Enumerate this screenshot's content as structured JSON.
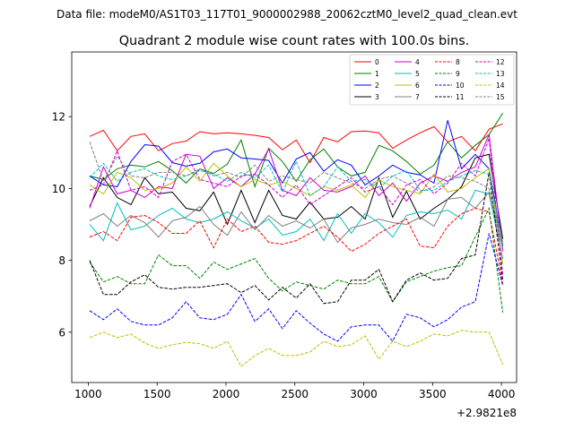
{
  "suptitle": "Data file: modeM0/AS1T03_117T01_9000002988_20062cztM0_level2_quad_clean.evt",
  "chart_data": {
    "type": "line",
    "title": "Quadrant 2 module wise count rates with 100.0s bins.",
    "xlabel": "",
    "ylabel": "",
    "x_offset_label": "+2.9821e8",
    "xlim": [
      880,
      4110
    ],
    "ylim": [
      4.6,
      13.8
    ],
    "xticks": [
      1000,
      1500,
      2000,
      2500,
      3000,
      3500,
      4000
    ],
    "yticks": [
      6,
      8,
      10,
      12
    ],
    "grid": false,
    "legend_position": "top-right",
    "x": [
      1010,
      1110,
      1210,
      1310,
      1410,
      1510,
      1610,
      1710,
      1810,
      1910,
      2010,
      2110,
      2210,
      2310,
      2410,
      2510,
      2610,
      2710,
      2810,
      2910,
      3010,
      3110,
      3210,
      3310,
      3410,
      3510,
      3610,
      3710,
      3810,
      3910,
      4010
    ],
    "series": [
      {
        "name": "0",
        "color": "#ff0000",
        "dash": "solid",
        "values": [
          11.45,
          11.62,
          11.05,
          11.45,
          11.52,
          11.05,
          11.25,
          11.32,
          11.58,
          11.52,
          11.55,
          11.52,
          11.48,
          11.42,
          11.08,
          11.35,
          10.72,
          11.42,
          11.3,
          11.58,
          11.6,
          11.55,
          11.12,
          11.35,
          11.55,
          11.72,
          11.3,
          11.45,
          11.05,
          11.65,
          11.8
        ]
      },
      {
        "name": "1",
        "color": "#008000",
        "dash": "solid",
        "values": [
          10.35,
          10.25,
          10.55,
          10.65,
          10.6,
          10.75,
          10.5,
          10.15,
          10.55,
          10.42,
          10.68,
          11.35,
          10.05,
          11.12,
          10.75,
          10.2,
          10.8,
          11.1,
          10.6,
          10.35,
          10.45,
          11.2,
          11.05,
          10.75,
          10.4,
          10.65,
          11.3,
          10.85,
          11.2,
          11.5,
          12.1
        ]
      },
      {
        "name": "2",
        "color": "#0000ff",
        "dash": "solid",
        "values": [
          10.35,
          10.1,
          10.05,
          10.75,
          11.22,
          11.18,
          10.72,
          10.62,
          10.7,
          11.02,
          11.1,
          10.85,
          10.82,
          10.78,
          10.15,
          10.82,
          11.0,
          10.48,
          10.8,
          10.65,
          10.1,
          10.35,
          10.65,
          10.45,
          10.38,
          10.15,
          11.9,
          10.55,
          10.95,
          10.55,
          8.4
        ]
      },
      {
        "name": "3",
        "color": "#000000",
        "dash": "solid",
        "values": [
          9.5,
          10.3,
          9.75,
          9.55,
          10.3,
          9.85,
          9.9,
          9.45,
          9.38,
          9.9,
          9.0,
          9.95,
          9.05,
          9.95,
          9.25,
          9.15,
          9.62,
          9.15,
          9.2,
          9.5,
          9.15,
          10.3,
          9.2,
          9.92,
          9.15,
          9.45,
          9.7,
          10.05,
          10.85,
          10.95,
          8.6
        ]
      },
      {
        "name": "4",
        "color": "#cc00cc",
        "dash": "solid",
        "values": [
          9.45,
          10.6,
          9.85,
          9.95,
          9.75,
          10.05,
          10.0,
          10.95,
          10.9,
          10.0,
          10.3,
          10.05,
          10.4,
          11.1,
          9.95,
          9.8,
          10.3,
          9.95,
          9.9,
          10.05,
          10.35,
          9.8,
          10.15,
          9.65,
          10.15,
          10.35,
          10.2,
          10.45,
          10.6,
          11.5,
          8.25
        ]
      },
      {
        "name": "5",
        "color": "#00bfbf",
        "dash": "solid",
        "values": [
          9.0,
          8.55,
          9.6,
          8.85,
          8.95,
          9.25,
          9.45,
          9.15,
          9.05,
          9.15,
          9.35,
          9.1,
          8.9,
          9.15,
          8.7,
          8.8,
          9.15,
          8.55,
          9.3,
          8.75,
          9.3,
          9.05,
          8.65,
          9.25,
          9.35,
          9.3,
          9.4,
          9.15,
          9.95,
          9.85,
          8.05
        ]
      },
      {
        "name": "6",
        "color": "#bfbf00",
        "dash": "solid",
        "values": [
          10.1,
          9.85,
          10.45,
          10.3,
          9.95,
          10.0,
          10.15,
          10.6,
          10.2,
          10.7,
          10.35,
          10.05,
          10.25,
          10.1,
          10.2,
          10.0,
          9.8,
          10.05,
          9.95,
          10.1,
          9.75,
          10.25,
          10.05,
          9.95,
          9.85,
          10.4,
          9.9,
          10.0,
          10.3,
          10.55,
          7.9
        ]
      },
      {
        "name": "7",
        "color": "#808080",
        "dash": "solid",
        "values": [
          9.1,
          9.3,
          8.95,
          9.25,
          9.05,
          8.65,
          9.1,
          9.2,
          9.5,
          9.0,
          8.7,
          9.35,
          8.85,
          9.25,
          8.95,
          9.1,
          8.9,
          9.15,
          8.5,
          8.9,
          9.0,
          9.15,
          9.05,
          9.0,
          9.2,
          8.95,
          9.7,
          9.75,
          9.45,
          9.9,
          8.35
        ]
      },
      {
        "name": "8",
        "color": "#ff0000",
        "dash": "dashed",
        "values": [
          8.65,
          8.8,
          8.55,
          9.2,
          9.25,
          9.05,
          8.75,
          8.75,
          9.1,
          8.35,
          9.15,
          8.8,
          8.95,
          8.5,
          8.45,
          8.55,
          8.75,
          8.95,
          8.65,
          8.25,
          8.45,
          8.75,
          8.95,
          9.15,
          8.4,
          8.35,
          8.95,
          9.3,
          9.45,
          9.35,
          7.35
        ]
      },
      {
        "name": "9",
        "color": "#008000",
        "dash": "dashed",
        "values": [
          7.95,
          7.4,
          7.55,
          7.35,
          7.35,
          8.15,
          7.85,
          7.85,
          7.5,
          7.95,
          7.75,
          7.9,
          8.05,
          7.5,
          7.15,
          7.4,
          7.3,
          7.2,
          7.45,
          7.35,
          7.35,
          7.55,
          6.85,
          7.4,
          7.55,
          7.7,
          7.8,
          7.85,
          8.65,
          9.45,
          6.55
        ]
      },
      {
        "name": "10",
        "color": "#0000ff",
        "dash": "dashed",
        "values": [
          6.6,
          6.35,
          6.65,
          6.3,
          6.2,
          6.2,
          6.4,
          6.85,
          6.4,
          6.35,
          6.5,
          7.05,
          6.3,
          6.65,
          6.1,
          6.6,
          6.25,
          5.95,
          5.75,
          6.15,
          6.2,
          6.2,
          5.75,
          6.5,
          6.4,
          6.15,
          6.35,
          6.7,
          6.85,
          8.75,
          7.3
        ]
      },
      {
        "name": "11",
        "color": "#000000",
        "dash": "dashed",
        "values": [
          8.0,
          7.05,
          7.05,
          7.4,
          7.6,
          7.25,
          7.2,
          7.25,
          7.25,
          7.3,
          7.35,
          7.1,
          7.3,
          6.9,
          7.25,
          6.95,
          7.35,
          6.8,
          6.85,
          7.45,
          7.45,
          7.75,
          6.85,
          7.45,
          7.65,
          7.45,
          7.5,
          8.05,
          8.15,
          10.45,
          7.45
        ]
      },
      {
        "name": "12",
        "color": "#cc00cc",
        "dash": "dashed",
        "values": [
          9.95,
          10.1,
          11.05,
          9.95,
          10.05,
          9.75,
          10.75,
          10.95,
          10.25,
          10.15,
          10.05,
          10.35,
          10.4,
          10.1,
          9.75,
          10.1,
          9.55,
          9.8,
          10.05,
          10.3,
          9.9,
          10.05,
          9.55,
          10.1,
          10.25,
          9.85,
          10.15,
          10.7,
          10.35,
          11.4,
          7.6
        ]
      },
      {
        "name": "13",
        "color": "#00bfbf",
        "dash": "dashed",
        "values": [
          10.3,
          10.7,
          10.2,
          10.45,
          10.55,
          10.35,
          10.25,
          10.35,
          10.5,
          10.4,
          10.2,
          10.45,
          10.3,
          10.65,
          9.9,
          10.75,
          9.8,
          10.05,
          10.6,
          10.2,
          10.25,
          10.0,
          10.35,
          10.5,
          9.95,
          9.95,
          10.2,
          10.35,
          10.5,
          10.4,
          8.45
        ]
      },
      {
        "name": "14",
        "color": "#bfbf00",
        "dash": "dashed",
        "values": [
          5.85,
          6.0,
          5.85,
          5.95,
          5.7,
          5.55,
          5.65,
          5.72,
          5.68,
          5.55,
          5.75,
          5.05,
          5.35,
          5.55,
          5.35,
          5.35,
          5.45,
          5.75,
          5.6,
          5.65,
          5.9,
          5.25,
          5.75,
          5.6,
          5.75,
          5.95,
          5.9,
          6.05,
          6.0,
          6.0,
          5.1
        ]
      },
      {
        "name": "15",
        "color": "#808080",
        "dash": "dashed",
        "values": [
          11.3,
          10.2,
          10.9,
          10.35,
          10.3,
          10.45,
          10.45,
          10.35,
          10.55,
          10.35,
          10.45,
          10.3,
          10.65,
          10.2,
          10.35,
          10.25,
          10.15,
          10.45,
          10.3,
          10.15,
          10.0,
          10.25,
          10.35,
          10.15,
          9.9,
          10.05,
          10.35,
          10.3,
          10.2,
          10.0,
          8.5
        ]
      }
    ]
  }
}
